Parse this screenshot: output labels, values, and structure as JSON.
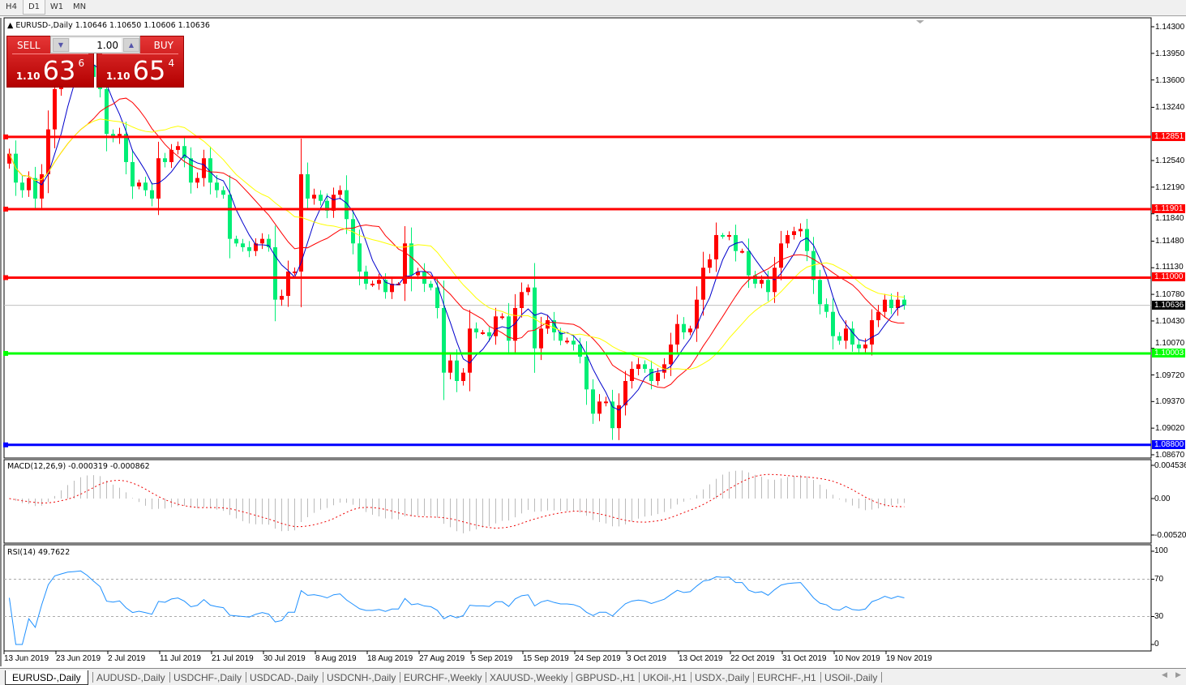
{
  "timeframes": [
    {
      "label": "H4"
    },
    {
      "label": "D1",
      "active": true
    },
    {
      "label": "W1"
    },
    {
      "label": "MN"
    }
  ],
  "chart": {
    "title": "EURUSD-,Daily",
    "ohlc": "1.10646 1.10650 1.10606 1.10636"
  },
  "trade_panel": {
    "sell_label": "SELL",
    "buy_label": "BUY",
    "lot": "1.00",
    "sell_price": {
      "prefix": "1.10",
      "big": "63",
      "sup": "6"
    },
    "buy_price": {
      "prefix": "1.10",
      "big": "65",
      "sup": "4"
    }
  },
  "colors": {
    "bull": "#ff0000",
    "bear": "#00ee76",
    "ma_fast": "#0000cc",
    "ma_mid": "#ff0000",
    "ma_slow": "#ffff00",
    "background": "#ffffff"
  },
  "price_axis": [
    "1.14300",
    "1.13950",
    "1.13600",
    "1.13240",
    "1.12540",
    "1.12190",
    "1.11840",
    "1.11480",
    "1.11130",
    "1.10780",
    "1.10430",
    "1.10070",
    "1.09720",
    "1.09370",
    "1.09020",
    "1.08670"
  ],
  "hlines": [
    {
      "price": "1.12851",
      "color": "#ff0000"
    },
    {
      "price": "1.11901",
      "color": "#ff0000"
    },
    {
      "price": "1.11000",
      "color": "#ff0000"
    },
    {
      "price": "1.10003",
      "color": "#00ff00"
    },
    {
      "price": "1.08800",
      "color": "#0000ff"
    }
  ],
  "current_price": "1.10636",
  "macd": {
    "label": "MACD(12,26,9) -0.000319 -0.000862",
    "axis": [
      "0.004536",
      "0.00",
      "-0.005205"
    ]
  },
  "rsi": {
    "label": "RSI(14) 49.7622",
    "axis": [
      "100",
      "70",
      "30",
      "0"
    ],
    "levels": [
      70,
      30
    ]
  },
  "dates": [
    "13 Jun 2019",
    "23 Jun 2019",
    "2 Jul 2019",
    "11 Jul 2019",
    "21 Jul 2019",
    "30 Jul 2019",
    "8 Aug 2019",
    "18 Aug 2019",
    "27 Aug 2019",
    "5 Sep 2019",
    "15 Sep 2019",
    "24 Sep 2019",
    "3 Oct 2019",
    "13 Oct 2019",
    "22 Oct 2019",
    "31 Oct 2019",
    "10 Nov 2019",
    "19 Nov 2019"
  ],
  "tabs": [
    {
      "label": "EURUSD-,Daily",
      "active": true
    },
    {
      "label": "AUDUSD-,Daily"
    },
    {
      "label": "USDCHF-,Daily"
    },
    {
      "label": "USDCAD-,Daily"
    },
    {
      "label": "USDCNH-,Daily"
    },
    {
      "label": "EURCHF-,Weekly"
    },
    {
      "label": "XAUUSD-,Weekly"
    },
    {
      "label": "GBPUSD-,H1"
    },
    {
      "label": "UKOil-,H1"
    },
    {
      "label": "USDX-,Daily"
    },
    {
      "label": "EURCHF-,H1"
    },
    {
      "label": "USOil-,Daily"
    }
  ],
  "chart_data": {
    "type": "candlestick",
    "symbol": "EURUSD-",
    "timeframe": "Daily",
    "ylim": [
      1.0867,
      1.143
    ],
    "close": [
      1.1263,
      1.1225,
      1.1215,
      1.1231,
      1.1204,
      1.1236,
      1.1295,
      1.1348,
      1.1364,
      1.138,
      1.1385,
      1.1391,
      1.138,
      1.1364,
      1.1348,
      1.1289,
      1.1284,
      1.1289,
      1.1252,
      1.122,
      1.1225,
      1.1215,
      1.1204,
      1.1257,
      1.1252,
      1.1268,
      1.1273,
      1.1257,
      1.1225,
      1.1231,
      1.1257,
      1.1225,
      1.1215,
      1.1209,
      1.1151,
      1.1145,
      1.114,
      1.1135,
      1.1145,
      1.1151,
      1.114,
      1.1071,
      1.1076,
      1.1108,
      1.1108,
      1.1236,
      1.1204,
      1.1209,
      1.1201,
      1.1188,
      1.1209,
      1.1215,
      1.1177,
      1.1145,
      1.1108,
      1.1092,
      1.1092,
      1.1097,
      1.1081,
      1.1092,
      1.1092,
      1.1145,
      1.1103,
      1.1108,
      1.1092,
      1.1087,
      1.106,
      1.0975,
      1.0991,
      1.0964,
      1.0975,
      1.1033,
      1.1028,
      1.1028,
      1.1023,
      1.1049,
      1.1049,
      1.1017,
      1.106,
      1.1081,
      1.1087,
      1.1007,
      1.1033,
      1.1044,
      1.1028,
      1.1017,
      1.1017,
      1.1012,
      1.0996,
      1.0953,
      1.0921,
      1.0937,
      1.0937,
      1.0902,
      1.0932,
      1.0964,
      1.098,
      1.0986,
      1.098,
      1.0964,
      1.0975,
      1.0986,
      1.1012,
      1.1039,
      1.1028,
      1.1033,
      1.1071,
      1.1113,
      1.1124,
      1.1156,
      1.1154,
      1.1156,
      1.1135,
      1.1135,
      1.1103,
      1.1092,
      1.1097,
      1.1081,
      1.1113,
      1.1145,
      1.1156,
      1.1161,
      1.1164,
      1.1135,
      1.1097,
      1.1065,
      1.1055,
      1.1023,
      1.1017,
      1.1033,
      1.1012,
      1.1007,
      1.1012,
      1.1044,
      1.1055,
      1.1071,
      1.106,
      1.1071,
      1.10636
    ]
  }
}
